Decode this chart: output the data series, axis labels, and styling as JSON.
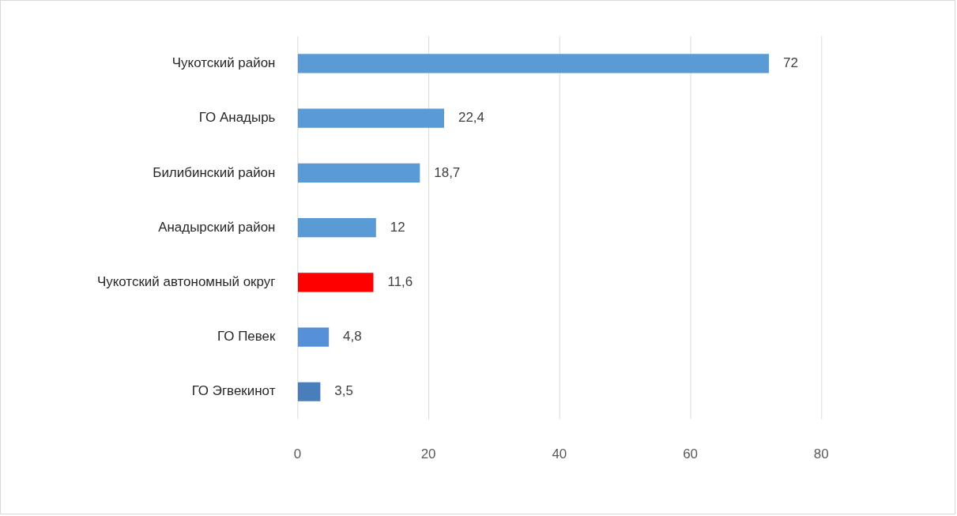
{
  "chart_data": {
    "type": "bar",
    "orientation": "horizontal",
    "categories": [
      "Чукотский район",
      "ГО Анадырь",
      "Билибинский район",
      "Анадырский район",
      "Чукотский автономный округ",
      "ГО Певек",
      "ГО Эгвекинот"
    ],
    "values": [
      72,
      22.4,
      18.7,
      12,
      11.6,
      4.8,
      3.5
    ],
    "colors": [
      "#5b9bd5",
      "#5b9bd5",
      "#5b9bd5",
      "#5b9bd5",
      "#ff0000",
      "#5590d8",
      "#4a7ebb"
    ],
    "value_labels": [
      "72",
      "22,4",
      "18,7",
      "12",
      "11,6",
      "4,8",
      "3,5"
    ],
    "xlim": [
      0,
      80
    ],
    "xticks": [
      0,
      20,
      40,
      60,
      80
    ],
    "grid": "x",
    "legend": false
  }
}
